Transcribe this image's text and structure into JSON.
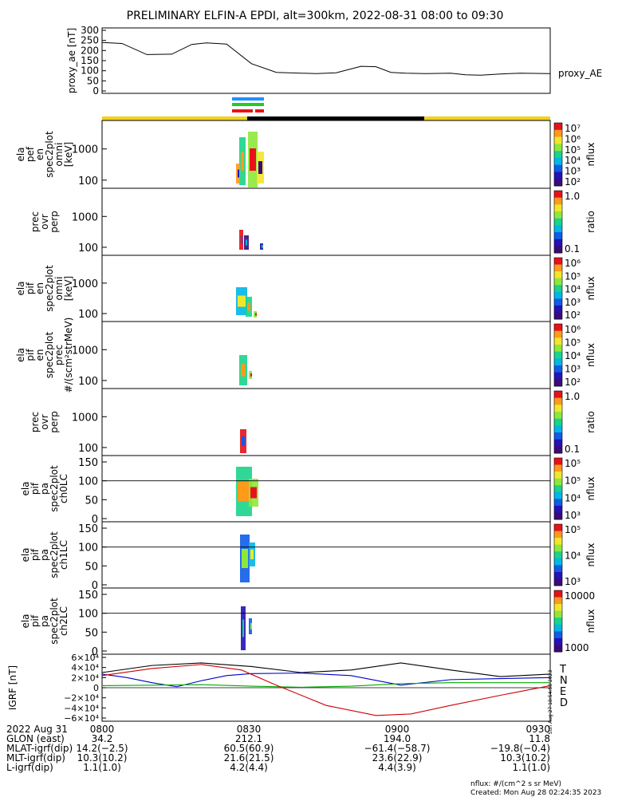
{
  "title": "PRELIMINARY ELFIN-A EPDI, alt=300km, 2022-08-31 08:00 to 09:30",
  "chart_data": [
    {
      "type": "line",
      "ylabel": "proxy_ae [nT]",
      "series_label": "proxy_AE",
      "yticks": [
        "300",
        "250",
        "200",
        "150",
        "100",
        "50",
        "0"
      ],
      "ylim": [
        0,
        300
      ],
      "xlim_min": [
        0,
        90
      ],
      "series": [
        {
          "name": "proxy_AE",
          "x": [
            0,
            4,
            9,
            14,
            18,
            21,
            25,
            30,
            35,
            40,
            43,
            47,
            52,
            55,
            58,
            61,
            65,
            70,
            73,
            76,
            80,
            84,
            90
          ],
          "y": [
            240,
            235,
            180,
            182,
            230,
            238,
            232,
            135,
            92,
            88,
            86,
            90,
            122,
            120,
            92,
            88,
            86,
            88,
            80,
            78,
            84,
            88,
            86
          ]
        }
      ]
    },
    {
      "type": "heatmap",
      "ylabel": [
        "ela",
        "pef",
        "en",
        "spec2plot",
        "omni",
        "[keV]"
      ],
      "yticks": [
        "1000",
        "100"
      ],
      "colorbar_ticks": [
        "10⁷",
        "10⁶",
        "10⁵",
        "10⁴",
        "10³",
        "10²"
      ],
      "colorbar_label": "nflux"
    },
    {
      "type": "heatmap",
      "ylabel": [
        "prec",
        "ovr",
        "perp"
      ],
      "yticks": [
        "1000",
        "100"
      ],
      "colorbar_ticks": [
        "1.0",
        "0.1"
      ],
      "colorbar_label": "ratio"
    },
    {
      "type": "heatmap",
      "ylabel": [
        "ela",
        "pif",
        "en",
        "spec2plot",
        "omni",
        "[keV]"
      ],
      "yticks": [
        "1000",
        "100"
      ],
      "colorbar_ticks": [
        "10⁶",
        "10⁵",
        "10⁴",
        "10³",
        "10²"
      ],
      "colorbar_label": "nflux"
    },
    {
      "type": "heatmap",
      "ylabel": [
        "ela",
        "pif",
        "en",
        "spec2plot",
        "prec",
        "#/(scm²strMeV)"
      ],
      "yticks": [
        "1000",
        "100"
      ],
      "colorbar_ticks": [
        "10⁶",
        "10⁵",
        "10⁴",
        "10³",
        "10²"
      ],
      "colorbar_label": "nflux"
    },
    {
      "type": "heatmap",
      "ylabel": [
        "prec",
        "ovr",
        "perp"
      ],
      "yticks": [
        "1000",
        "100"
      ],
      "colorbar_ticks": [
        "1.0",
        "0.1"
      ],
      "colorbar_label": "ratio"
    },
    {
      "type": "heatmap",
      "ylabel": [
        "ela",
        "pif",
        "pa",
        "spec2plot",
        "ch0LC"
      ],
      "yticks": [
        "150",
        "100",
        "50",
        "0"
      ],
      "colorbar_ticks": [
        "10⁵",
        "10⁵",
        "10⁴",
        "10³"
      ],
      "colorbar_label": "nflux"
    },
    {
      "type": "heatmap",
      "ylabel": [
        "ela",
        "pif",
        "pa",
        "spec2plot",
        "ch1LC"
      ],
      "yticks": [
        "150",
        "100",
        "50",
        "0"
      ],
      "colorbar_ticks": [
        "10⁵",
        "10⁴",
        "10³"
      ],
      "colorbar_label": "nflux"
    },
    {
      "type": "heatmap",
      "ylabel": [
        "ela",
        "pif",
        "pa",
        "spec2plot",
        "ch2LC"
      ],
      "yticks": [
        "150",
        "100",
        "50",
        "0"
      ],
      "colorbar_ticks": [
        "10000",
        "1000"
      ],
      "colorbar_label": "nflux"
    },
    {
      "type": "line",
      "ylabel": "IGRF [nT]",
      "yticks": [
        "6×10⁴",
        "4×10⁴",
        "2×10⁴",
        "0",
        "−2×10⁴",
        "−4×10⁴",
        "−6×10⁴"
      ],
      "ylim": [
        -60000,
        60000
      ],
      "legend": [
        "T",
        "N",
        "E",
        "D"
      ],
      "series": [
        {
          "name": "T",
          "color": "#000000",
          "x": [
            0,
            10,
            20,
            30,
            40,
            50,
            60,
            70,
            80,
            90
          ],
          "y": [
            30000,
            44000,
            49000,
            42000,
            30000,
            35000,
            49000,
            35000,
            22000,
            27000
          ]
        },
        {
          "name": "N",
          "color": "#0000cc",
          "x": [
            0,
            5,
            10,
            15,
            20,
            25,
            30,
            40,
            50,
            60,
            70,
            80,
            90
          ],
          "y": [
            27000,
            20000,
            10000,
            2000,
            14000,
            24000,
            28000,
            29000,
            24000,
            5000,
            16000,
            18000,
            20000
          ]
        },
        {
          "name": "E",
          "color": "#00aa00",
          "x": [
            0,
            10,
            20,
            30,
            40,
            50,
            60,
            70,
            80,
            90
          ],
          "y": [
            4000,
            5000,
            6000,
            3000,
            1000,
            3000,
            8000,
            10000,
            10000,
            10000
          ]
        },
        {
          "name": "D",
          "color": "#cc0000",
          "x": [
            0,
            10,
            20,
            28,
            35,
            45,
            55,
            62,
            70,
            80,
            90
          ],
          "y": [
            24000,
            38000,
            46000,
            35000,
            5000,
            -35000,
            -55000,
            -52000,
            -35000,
            -15000,
            4000
          ]
        }
      ]
    }
  ],
  "footer": {
    "xticks": [
      "0800",
      "0830",
      "0900",
      "0930"
    ],
    "rows": [
      {
        "label": "2022 Aug 31",
        "vals": [
          "0800",
          "0830",
          "0900",
          "0930"
        ]
      },
      {
        "label": "GLON (east)",
        "vals": [
          "34.2",
          "212.1",
          "194.0",
          "11.8"
        ]
      },
      {
        "label": "MLAT-igrf(dip)",
        "vals": [
          "14.2(−2.5)",
          "60.5(60.9)",
          "−61.4(−58.7)",
          "−19.8(−0.4)"
        ]
      },
      {
        "label": "MLT-igrf(dip)",
        "vals": [
          "10.3(10.2)",
          "21.6(21.5)",
          "23.6(22.9)",
          "10.3(10.2)"
        ]
      },
      {
        "label": "L-igrf(dip)",
        "vals": [
          "1.1(1.0)",
          "4.2(4.4)",
          "4.4(3.9)",
          "1.1(1.0)"
        ]
      }
    ],
    "units_note": "nflux: #/(cm^2 s sr MeV)",
    "created": "Created: Mon Aug 28 02:24:35 2023",
    "side_stamp": "Sun Aug 27 18:54:58 2023"
  }
}
